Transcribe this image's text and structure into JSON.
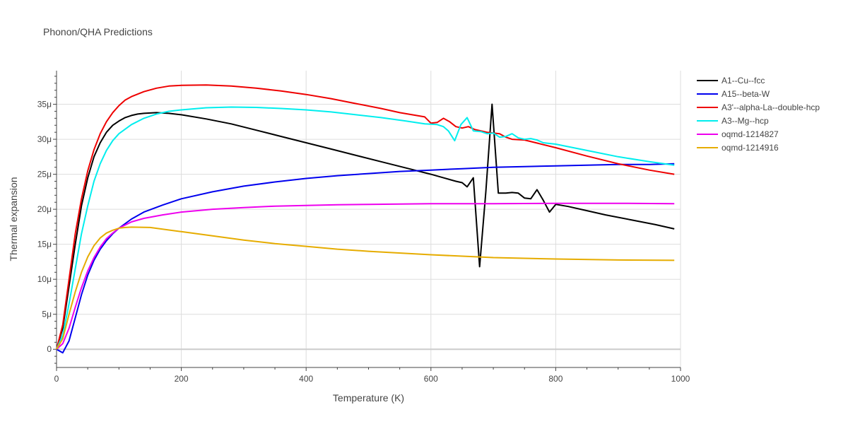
{
  "chart_data": {
    "type": "line",
    "title": "Phonon/QHA Predictions",
    "xlabel": "Temperature (K)",
    "ylabel": "Thermal expansion",
    "xlim": [
      0,
      1000
    ],
    "ylim": [
      -2.6e-06,
      3.98e-05
    ],
    "x_ticks": [
      0,
      200,
      400,
      600,
      800,
      1000
    ],
    "x_tick_labels": [
      "0",
      "200",
      "400",
      "600",
      "800",
      "1000"
    ],
    "y_ticks": [
      0,
      5e-06,
      1e-05,
      1.5e-05,
      2e-05,
      2.5e-05,
      3e-05,
      3.5e-05
    ],
    "y_tick_labels": [
      "0",
      "5μ",
      "10μ",
      "15μ",
      "20μ",
      "25μ",
      "30μ",
      "35μ"
    ],
    "grid": true,
    "legend_position": "top-right",
    "series": [
      {
        "name": "A1--Cu--fcc",
        "color": "#000000",
        "points": [
          [
            0,
            0
          ],
          [
            10,
            3
          ],
          [
            20,
            9
          ],
          [
            30,
            15
          ],
          [
            40,
            20.5
          ],
          [
            50,
            24.5
          ],
          [
            60,
            27.5
          ],
          [
            70,
            29.5
          ],
          [
            80,
            31
          ],
          [
            90,
            32
          ],
          [
            100,
            32.6
          ],
          [
            110,
            33.1
          ],
          [
            120,
            33.4
          ],
          [
            130,
            33.6
          ],
          [
            140,
            33.7
          ],
          [
            160,
            33.8
          ],
          [
            180,
            33.7
          ],
          [
            200,
            33.5
          ],
          [
            240,
            32.9
          ],
          [
            280,
            32.2
          ],
          [
            320,
            31.3
          ],
          [
            360,
            30.4
          ],
          [
            400,
            29.5
          ],
          [
            440,
            28.6
          ],
          [
            480,
            27.7
          ],
          [
            520,
            26.8
          ],
          [
            560,
            25.9
          ],
          [
            600,
            25.0
          ],
          [
            620,
            24.5
          ],
          [
            640,
            24.0
          ],
          [
            650,
            23.8
          ],
          [
            658,
            23.2
          ],
          [
            668,
            24.5
          ],
          [
            678,
            11.8
          ],
          [
            688,
            22.5
          ],
          [
            698,
            35.0
          ],
          [
            708,
            22.3
          ],
          [
            720,
            22.3
          ],
          [
            730,
            22.4
          ],
          [
            740,
            22.3
          ],
          [
            750,
            21.6
          ],
          [
            760,
            21.5
          ],
          [
            770,
            22.8
          ],
          [
            780,
            21.3
          ],
          [
            790,
            19.6
          ],
          [
            800,
            20.7
          ],
          [
            820,
            20.4
          ],
          [
            850,
            19.8
          ],
          [
            880,
            19.2
          ],
          [
            920,
            18.5
          ],
          [
            960,
            17.8
          ],
          [
            990,
            17.2
          ]
        ]
      },
      {
        "name": "A15--beta-W",
        "color": "#0000ee",
        "points": [
          [
            0,
            0
          ],
          [
            10,
            -0.5
          ],
          [
            20,
            1.2
          ],
          [
            30,
            4.5
          ],
          [
            40,
            7.8
          ],
          [
            50,
            10.6
          ],
          [
            60,
            12.7
          ],
          [
            70,
            14.3
          ],
          [
            80,
            15.5
          ],
          [
            90,
            16.5
          ],
          [
            100,
            17.3
          ],
          [
            120,
            18.6
          ],
          [
            140,
            19.6
          ],
          [
            170,
            20.6
          ],
          [
            200,
            21.5
          ],
          [
            250,
            22.5
          ],
          [
            300,
            23.3
          ],
          [
            350,
            23.9
          ],
          [
            400,
            24.4
          ],
          [
            450,
            24.8
          ],
          [
            500,
            25.1
          ],
          [
            550,
            25.4
          ],
          [
            600,
            25.6
          ],
          [
            650,
            25.8
          ],
          [
            700,
            26.0
          ],
          [
            750,
            26.1
          ],
          [
            800,
            26.2
          ],
          [
            850,
            26.3
          ],
          [
            900,
            26.4
          ],
          [
            950,
            26.4
          ],
          [
            990,
            26.5
          ]
        ]
      },
      {
        "name": "A3'--alpha-La--double-hcp",
        "color": "#ee0000",
        "points": [
          [
            0,
            0
          ],
          [
            10,
            3.5
          ],
          [
            20,
            10
          ],
          [
            30,
            16.5
          ],
          [
            40,
            21.5
          ],
          [
            50,
            25.5
          ],
          [
            60,
            28.5
          ],
          [
            70,
            30.8
          ],
          [
            80,
            32.5
          ],
          [
            90,
            33.8
          ],
          [
            100,
            34.8
          ],
          [
            110,
            35.6
          ],
          [
            120,
            36.1
          ],
          [
            140,
            36.8
          ],
          [
            160,
            37.3
          ],
          [
            180,
            37.6
          ],
          [
            200,
            37.7
          ],
          [
            240,
            37.75
          ],
          [
            280,
            37.6
          ],
          [
            320,
            37.3
          ],
          [
            360,
            36.9
          ],
          [
            400,
            36.4
          ],
          [
            440,
            35.8
          ],
          [
            480,
            35.1
          ],
          [
            520,
            34.4
          ],
          [
            550,
            33.8
          ],
          [
            570,
            33.5
          ],
          [
            590,
            33.2
          ],
          [
            600,
            32.3
          ],
          [
            610,
            32.4
          ],
          [
            620,
            33.0
          ],
          [
            630,
            32.5
          ],
          [
            640,
            31.8
          ],
          [
            650,
            31.6
          ],
          [
            660,
            31.8
          ],
          [
            670,
            31.4
          ],
          [
            690,
            31.0
          ],
          [
            710,
            30.8
          ],
          [
            720,
            30.3
          ],
          [
            730,
            30.0
          ],
          [
            750,
            29.9
          ],
          [
            800,
            28.8
          ],
          [
            850,
            27.6
          ],
          [
            900,
            26.5
          ],
          [
            950,
            25.6
          ],
          [
            990,
            25.0
          ]
        ]
      },
      {
        "name": "A3--Mg--hcp",
        "color": "#00eeee",
        "points": [
          [
            0,
            0
          ],
          [
            10,
            2
          ],
          [
            20,
            6.5
          ],
          [
            30,
            11.5
          ],
          [
            40,
            16.5
          ],
          [
            50,
            20.5
          ],
          [
            60,
            24
          ],
          [
            70,
            26.5
          ],
          [
            80,
            28.4
          ],
          [
            90,
            29.8
          ],
          [
            100,
            30.8
          ],
          [
            120,
            32.1
          ],
          [
            140,
            33.0
          ],
          [
            160,
            33.6
          ],
          [
            180,
            34.0
          ],
          [
            200,
            34.2
          ],
          [
            240,
            34.5
          ],
          [
            280,
            34.6
          ],
          [
            320,
            34.55
          ],
          [
            360,
            34.4
          ],
          [
            400,
            34.2
          ],
          [
            440,
            33.9
          ],
          [
            480,
            33.5
          ],
          [
            520,
            33.1
          ],
          [
            560,
            32.6
          ],
          [
            590,
            32.2
          ],
          [
            610,
            32.1
          ],
          [
            620,
            31.8
          ],
          [
            628,
            31.2
          ],
          [
            638,
            29.8
          ],
          [
            648,
            32.1
          ],
          [
            658,
            33.1
          ],
          [
            668,
            31.2
          ],
          [
            680,
            31.1
          ],
          [
            690,
            30.8
          ],
          [
            700,
            30.9
          ],
          [
            710,
            30.3
          ],
          [
            720,
            30.4
          ],
          [
            730,
            30.8
          ],
          [
            740,
            30.2
          ],
          [
            750,
            30.0
          ],
          [
            760,
            30.1
          ],
          [
            770,
            29.9
          ],
          [
            780,
            29.5
          ],
          [
            800,
            29.3
          ],
          [
            850,
            28.4
          ],
          [
            900,
            27.5
          ],
          [
            950,
            26.8
          ],
          [
            990,
            26.3
          ]
        ]
      },
      {
        "name": "oqmd-1214827",
        "color": "#ee00ee",
        "points": [
          [
            0,
            0
          ],
          [
            10,
            0.8
          ],
          [
            20,
            3
          ],
          [
            30,
            6
          ],
          [
            40,
            8.8
          ],
          [
            50,
            11.2
          ],
          [
            60,
            13.1
          ],
          [
            70,
            14.6
          ],
          [
            80,
            15.8
          ],
          [
            90,
            16.6
          ],
          [
            100,
            17.3
          ],
          [
            120,
            18.2
          ],
          [
            140,
            18.7
          ],
          [
            170,
            19.2
          ],
          [
            200,
            19.6
          ],
          [
            250,
            20.0
          ],
          [
            300,
            20.25
          ],
          [
            350,
            20.45
          ],
          [
            400,
            20.55
          ],
          [
            450,
            20.65
          ],
          [
            500,
            20.7
          ],
          [
            550,
            20.75
          ],
          [
            600,
            20.8
          ],
          [
            700,
            20.8
          ],
          [
            800,
            20.85
          ],
          [
            900,
            20.85
          ],
          [
            990,
            20.8
          ]
        ]
      },
      {
        "name": "oqmd-1214916",
        "color": "#e6ac00",
        "points": [
          [
            0,
            0
          ],
          [
            10,
            1.5
          ],
          [
            20,
            5
          ],
          [
            30,
            8.2
          ],
          [
            40,
            11
          ],
          [
            50,
            13.2
          ],
          [
            60,
            14.8
          ],
          [
            70,
            15.9
          ],
          [
            80,
            16.6
          ],
          [
            90,
            17.0
          ],
          [
            100,
            17.3
          ],
          [
            110,
            17.4
          ],
          [
            120,
            17.45
          ],
          [
            150,
            17.4
          ],
          [
            200,
            16.8
          ],
          [
            250,
            16.2
          ],
          [
            300,
            15.6
          ],
          [
            350,
            15.1
          ],
          [
            400,
            14.7
          ],
          [
            450,
            14.3
          ],
          [
            500,
            14.0
          ],
          [
            600,
            13.5
          ],
          [
            700,
            13.1
          ],
          [
            800,
            12.9
          ],
          [
            900,
            12.75
          ],
          [
            990,
            12.7
          ]
        ]
      }
    ]
  }
}
